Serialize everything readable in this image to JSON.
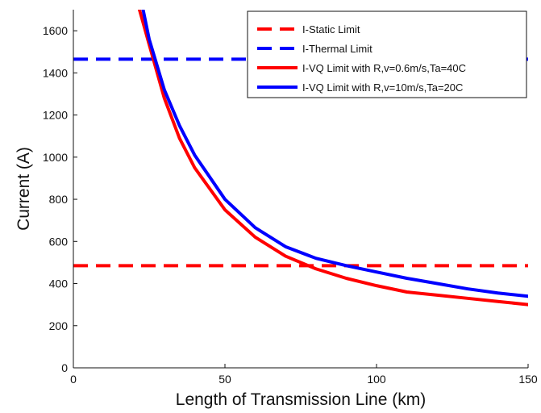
{
  "chart_data": {
    "type": "line",
    "title": "",
    "xlabel": "Length of Transmission Line (km)",
    "ylabel": "Current (A)",
    "xlim": [
      0,
      150
    ],
    "ylim": [
      0,
      1700
    ],
    "xticks": [
      0,
      50,
      100,
      150
    ],
    "xtick_labels": [
      "0",
      "50",
      "100",
      "150"
    ],
    "yticks": [
      0,
      200,
      400,
      600,
      800,
      1000,
      1200,
      1400,
      1600
    ],
    "ytick_labels": [
      "0",
      "200",
      "400",
      "600",
      "800",
      "1000",
      "1200",
      "1400",
      "1600"
    ],
    "grid": false,
    "legend_position": "top-right",
    "series": [
      {
        "name": "I-Static Limit",
        "color": "#ff0000",
        "line_style": "dashed",
        "x": [
          0,
          150
        ],
        "y": [
          485,
          485
        ]
      },
      {
        "name": "I-Thermal Limit",
        "color": "#0000ff",
        "line_style": "dashed",
        "x": [
          0,
          150
        ],
        "y": [
          1465,
          1465
        ]
      },
      {
        "name": "I-VQ Limit with R,v=0.6m/s,Ta=40C",
        "color": "#ff0000",
        "line_style": "solid",
        "x": [
          21.8,
          25,
          30,
          35,
          40,
          50,
          60,
          70,
          80,
          90,
          100,
          110,
          120,
          130,
          140,
          150
        ],
        "y": [
          1700,
          1535,
          1280,
          1090,
          950,
          750,
          620,
          530,
          470,
          425,
          390,
          360,
          345,
          330,
          315,
          300
        ]
      },
      {
        "name": "I-VQ Limit with R,v=10m/s,Ta=20C",
        "color": "#0000ff",
        "line_style": "solid",
        "x": [
          23,
          25,
          30,
          35,
          40,
          50,
          60,
          70,
          80,
          90,
          100,
          110,
          120,
          130,
          140,
          150
        ],
        "y": [
          1700,
          1560,
          1320,
          1150,
          1010,
          800,
          665,
          575,
          520,
          485,
          455,
          425,
          400,
          375,
          355,
          340
        ]
      }
    ]
  }
}
